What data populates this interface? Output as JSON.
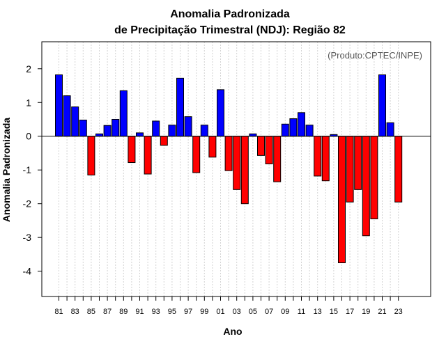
{
  "chart_data": {
    "type": "bar",
    "title_line1": "Anomalia Padronizada",
    "title_line2": "de Precipitação Trimestral (NDJ): Região 82",
    "xlabel": "Ano",
    "ylabel": "Anomalia Padronizada",
    "credit": "(Produto:CPTEC/INPE)",
    "ylim": [
      -4.75,
      2.8
    ],
    "yticks": [
      2,
      1,
      0,
      -1,
      -2,
      -3,
      -4
    ],
    "ytick_labels": [
      "2",
      "1",
      "0",
      "-1",
      "-2",
      "-3",
      "-4"
    ],
    "categories": [
      "81",
      "82",
      "83",
      "84",
      "85",
      "86",
      "87",
      "88",
      "89",
      "90",
      "91",
      "92",
      "93",
      "94",
      "95",
      "96",
      "97",
      "98",
      "99",
      "00",
      "01",
      "02",
      "03",
      "04",
      "05",
      "06",
      "07",
      "08",
      "09",
      "10",
      "11",
      "12",
      "13",
      "14",
      "15",
      "16",
      "17",
      "18",
      "19",
      "20",
      "21",
      "22",
      "23"
    ],
    "xtick_labels": [
      "81",
      "83",
      "85",
      "87",
      "89",
      "91",
      "93",
      "95",
      "97",
      "99",
      "01",
      "03",
      "05",
      "07",
      "09",
      "11",
      "13",
      "15",
      "17",
      "19",
      "21",
      "23"
    ],
    "values": [
      1.82,
      1.2,
      0.87,
      0.48,
      -1.15,
      0.07,
      0.32,
      0.5,
      1.35,
      -0.78,
      0.1,
      -1.12,
      0.45,
      -0.27,
      0.33,
      1.72,
      0.58,
      -1.08,
      0.33,
      -0.62,
      1.38,
      -1.02,
      -1.58,
      -2.0,
      0.07,
      -0.57,
      -0.82,
      -1.35,
      0.36,
      0.52,
      0.7,
      0.33,
      -1.18,
      -1.32,
      0.05,
      -3.75,
      -1.95,
      -1.58,
      -2.95,
      -2.45,
      1.82,
      0.4,
      -1.95
    ],
    "colors": {
      "positive": "#0000ff",
      "negative": "#ff0000",
      "grid": "#d3d3d3"
    }
  }
}
